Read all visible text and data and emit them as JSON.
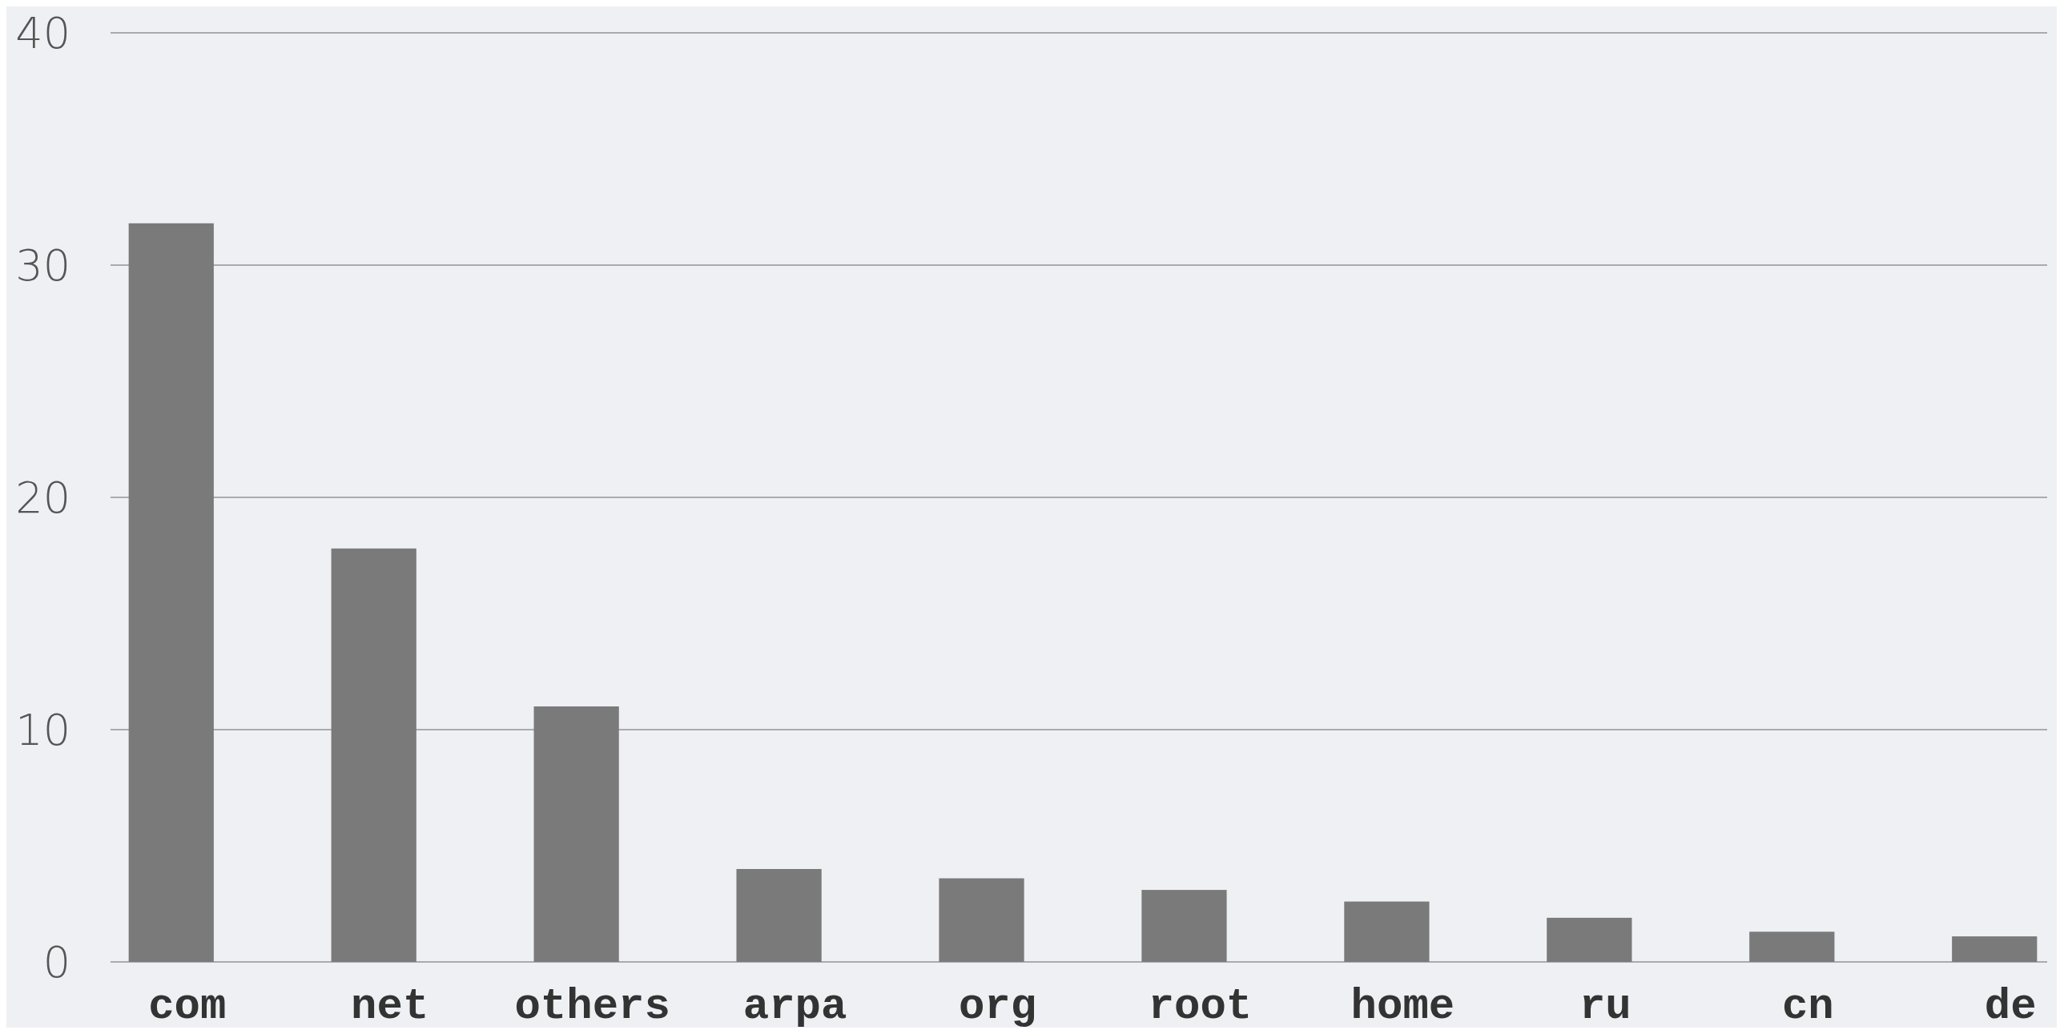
{
  "chart_data": {
    "type": "bar",
    "categories": [
      "com",
      "net",
      "others",
      "arpa",
      "org",
      "root",
      "home",
      "ru",
      "cn",
      "de"
    ],
    "values": [
      31.8,
      17.8,
      11.0,
      4.0,
      3.6,
      3.1,
      2.6,
      1.9,
      1.3,
      1.1
    ],
    "color": "#7a7a7a",
    "ylim": [
      0,
      40
    ],
    "yticks": [
      0,
      10,
      20,
      30,
      40
    ],
    "grid": "y"
  }
}
